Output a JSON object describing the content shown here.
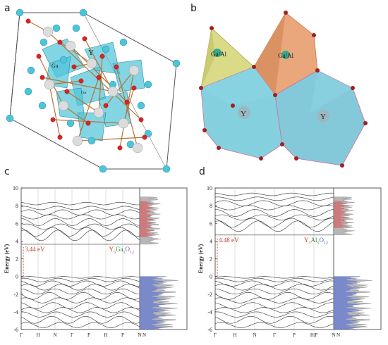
{
  "panels": {
    "a": {
      "letter": "a",
      "atom_labels": [
        "Y",
        "Ga",
        "Ga"
      ]
    },
    "b": {
      "letter": "b",
      "site_labels": [
        "Ga/Al",
        "Ga/Al",
        "Y",
        "Y"
      ]
    },
    "c": {
      "letter": "c"
    },
    "d": {
      "letter": "d"
    }
  },
  "chart_data": [
    {
      "type": "line",
      "panel": "c",
      "ylabel": "Energy (eV)",
      "ylim": [
        -6,
        10
      ],
      "yticks": [
        -6,
        -4,
        -2,
        0,
        2,
        4,
        6,
        8,
        10
      ],
      "kpoints": [
        "Γ",
        "H",
        "N",
        "Γ",
        "P",
        "H",
        "P",
        "N"
      ],
      "gap_label": "3.44 eV",
      "band_gap_ev": 3.44,
      "compound": {
        "parts": [
          "Y",
          "3",
          "Ga",
          "5",
          "O",
          "12"
        ],
        "colors": [
          "#c0392b",
          "#c0392b",
          "#2e8b2e",
          "#2e8b2e",
          "#8e44ad",
          "#8e44ad"
        ]
      },
      "cb_min_ev": 3.44,
      "vb_max_ev": 0.0,
      "dos": true
    },
    {
      "type": "line",
      "panel": "d",
      "ylabel": "Energy (eV)",
      "ylim": [
        -6,
        10
      ],
      "yticks": [
        -6,
        -4,
        -2,
        0,
        2,
        4,
        6,
        8,
        10
      ],
      "kpoints": [
        "Γ",
        "H",
        "N",
        "Γ",
        "P",
        "H|P",
        "N"
      ],
      "gap_label": "4.48 eV",
      "band_gap_ev": 4.48,
      "compound": {
        "parts": [
          "Y",
          "3",
          "Al",
          "5",
          "O",
          "12"
        ],
        "colors": [
          "#c0392b",
          "#c0392b",
          "#2e8b2e",
          "#2e8b2e",
          "#3b5bdb",
          "#3b5bdb"
        ]
      },
      "cb_min_ev": 4.48,
      "vb_max_ev": 0.0,
      "dos": true
    }
  ],
  "colors": {
    "teal": "#4fc3d9",
    "red_atom": "#d22",
    "silver": "#d9d9d9",
    "orange_poly": "#e8a070",
    "yellow_poly": "#d6d67a",
    "cyan_poly": "#6fc8d8",
    "grey_dos": "#999",
    "blue_dos": "#3b5bdb",
    "red_dos": "#e04040"
  }
}
